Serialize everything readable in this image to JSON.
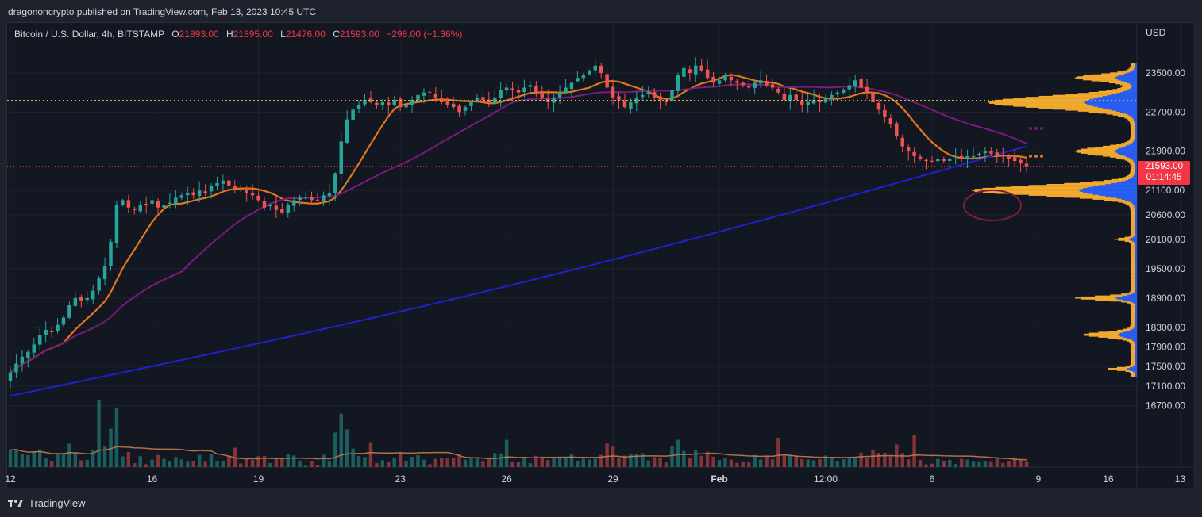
{
  "header": {
    "published": "dragononcrypto published on TradingView.com, Feb 13, 2023 10:45 UTC"
  },
  "legend": {
    "symbol": "Bitcoin / U.S. Dollar, 4h, BITSTAMP",
    "o_label": "O",
    "o": "21893.00",
    "h_label": "H",
    "h": "21895.00",
    "l_label": "L",
    "l": "21476.00",
    "c_label": "C",
    "c": "21593.00",
    "change": "−298.00 (−1.36%)"
  },
  "price_tag": {
    "price": "21593.00",
    "countdown": "01:14:45"
  },
  "footer": {
    "brand": "TradingView"
  },
  "colors": {
    "up": "#26a69a",
    "down": "#ef5350",
    "ma_fast": "#e0761e",
    "ma_mid": "#7b1b7b",
    "ma_slow": "#2020d0",
    "vp_up": "#2962ff",
    "vp_down": "#ffb22e",
    "bg": "#131722"
  },
  "chart_data": {
    "type": "candlestick",
    "currency": "USD",
    "timeframe": "4h",
    "y_ticks": [
      23500,
      22700,
      21900,
      21100,
      20600,
      20100,
      19500,
      18900,
      18300,
      17900,
      17500,
      17100,
      16700
    ],
    "y_tick_labels": [
      "23500.00",
      "22700.00",
      "21900.00",
      "21100.00",
      "20600.00",
      "20100.00",
      "19500.00",
      "18900.00",
      "18300.00",
      "17900.00",
      "17500.00",
      "17100.00",
      "16700.00"
    ],
    "x_tick_labels": [
      "12",
      "16",
      "19",
      "23",
      "26",
      "29",
      "Feb",
      "12:00",
      "6",
      "9",
      "13",
      "16"
    ],
    "x_tick_index": [
      0,
      24,
      42,
      66,
      84,
      102,
      120,
      138,
      156,
      174,
      198,
      216
    ],
    "last_close": 21593,
    "ohlc_note": "O 21893.00 H 21895.00 L 21476.00 C 21593.00",
    "close_series": [
      17380,
      17560,
      17700,
      17800,
      17950,
      18150,
      18250,
      18200,
      18350,
      18500,
      18750,
      18900,
      18850,
      18900,
      19050,
      19300,
      19550,
      20050,
      20800,
      20900,
      20750,
      20700,
      20800,
      20800,
      20900,
      20750,
      20800,
      20850,
      20950,
      21000,
      21050,
      21000,
      21100,
      21050,
      21200,
      21250,
      21300,
      21200,
      21150,
      21100,
      21050,
      21000,
      20900,
      20750,
      20800,
      20700,
      20650,
      20800,
      20900,
      20950,
      20950,
      20900,
      20900,
      21000,
      21050,
      21450,
      22100,
      22550,
      22750,
      22850,
      22950,
      22900,
      22850,
      22900,
      22850,
      22950,
      22800,
      22850,
      22950,
      23050,
      23100,
      23100,
      23000,
      22900,
      22850,
      22800,
      22700,
      22800,
      22900,
      23000,
      22950,
      22900,
      23000,
      23150,
      23200,
      23150,
      23100,
      23200,
      23250,
      23100,
      23000,
      22900,
      23000,
      23100,
      23200,
      23300,
      23400,
      23450,
      23550,
      23650,
      23500,
      23200,
      23000,
      22950,
      22800,
      22900,
      23000,
      23050,
      23100,
      23000,
      22950,
      22900,
      23150,
      23450,
      23600,
      23500,
      23650,
      23550,
      23400,
      23300,
      23350,
      23450,
      23350,
      23300,
      23250,
      23200,
      23300,
      23350,
      23250,
      23200,
      23100,
      22950,
      23050,
      22950,
      22850,
      22900,
      22950,
      22900,
      23000,
      23050,
      23100,
      23150,
      23250,
      23350,
      23200,
      23100,
      22900,
      22750,
      22600,
      22450,
      22200,
      22000,
      21900,
      21800,
      21750,
      21700,
      21700,
      21750,
      21700,
      21750,
      21800,
      21750,
      21800,
      21800,
      21850,
      21900,
      21850,
      21800,
      21800,
      21750,
      21700,
      21650,
      21593
    ],
    "volume_note": "4h volume histogram with moving average overlay",
    "moving_averages": [
      "fast (orange)",
      "medium (purple)",
      "slow (blue)"
    ],
    "volume_profile": "visible range volume profile on right edge, high volume nodes near 21000-21200 and 22800-23200"
  }
}
